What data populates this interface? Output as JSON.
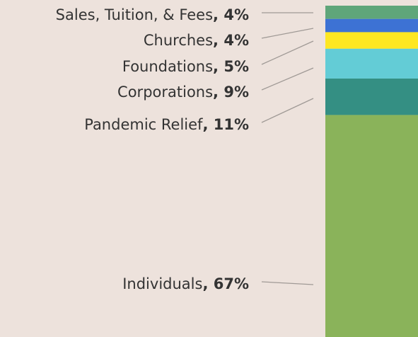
{
  "chart_data": {
    "type": "stacked-bar",
    "categories": [
      "Sales, Tuition, & Fees",
      "Churches",
      "Foundations",
      "Corporations",
      "Pandemic Relief",
      "Individuals"
    ],
    "values": [
      4,
      4,
      5,
      9,
      11,
      67
    ],
    "value_labels": [
      ", 4%",
      ", 4%",
      ", 5%",
      ", 9%",
      ", 11%",
      ", 67%"
    ],
    "colors": [
      "#5fa67a",
      "#3d72d4",
      "#fde722",
      "#63ccd6",
      "#348f83",
      "#8ab35a"
    ]
  }
}
